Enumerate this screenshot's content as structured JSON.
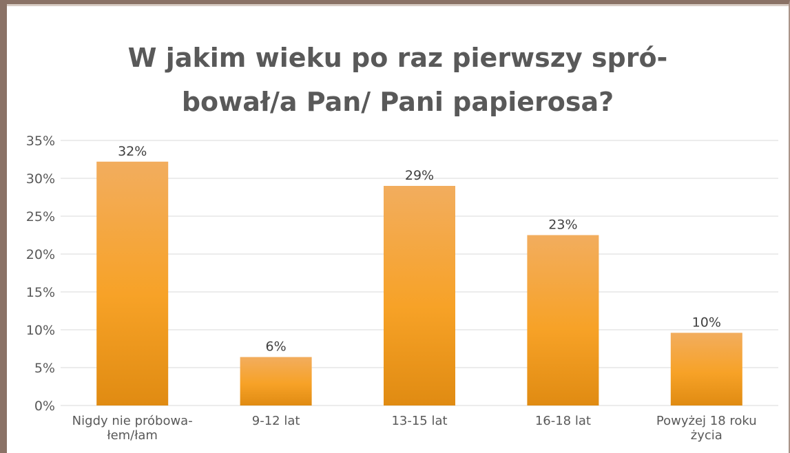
{
  "chart_data": {
    "type": "bar",
    "title_lines": [
      "W jakim wieku po raz pierwszy spró-",
      "bował/a Pan/ Pani papierosa?"
    ],
    "categories": [
      [
        "Nigdy nie próbowa-",
        "łem/łam"
      ],
      [
        "9-12 lat"
      ],
      [
        "13-15 lat"
      ],
      [
        "16-18 lat"
      ],
      [
        "Powyżej 18 roku",
        "życia"
      ]
    ],
    "values": [
      32.2,
      6.4,
      29.0,
      22.5,
      9.6
    ],
    "data_labels": [
      "32%",
      "6%",
      "29%",
      "23%",
      "10%"
    ],
    "yticks": [
      "0%",
      "5%",
      "10%",
      "15%",
      "20%",
      "25%",
      "30%",
      "35%"
    ],
    "ylim": [
      0,
      35
    ],
    "grid": true,
    "colors": {
      "bar_top": "#f2ad5e",
      "bar_mid": "#f7a227",
      "bar_bottom": "#e08b12",
      "grid": "#d9d9d9",
      "frame": "#8a7266"
    }
  }
}
